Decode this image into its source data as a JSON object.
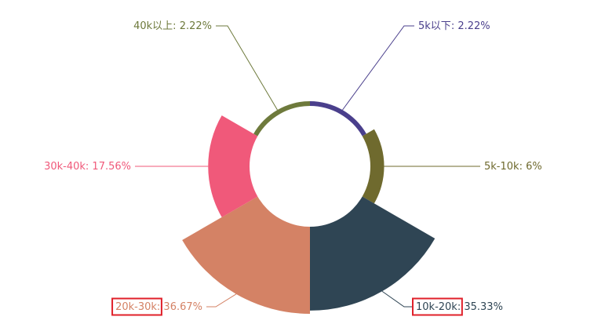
{
  "chart_data": {
    "type": "rose",
    "categories": [
      "5k以下",
      "5k-10k",
      "10k-20k",
      "20k-30k",
      "30k-40k",
      "40k以上"
    ],
    "values": [
      2.22,
      6,
      35.33,
      36.67,
      17.56,
      2.22
    ],
    "value_labels": [
      "2.22%",
      "6%",
      "35.33%",
      "36.67%",
      "17.56%",
      "2.22%"
    ],
    "label_separator": ": ",
    "colors": [
      "#4a3f8c",
      "#6f6a2e",
      "#2f4554",
      "#d48265",
      "#f0597a",
      "#6e7a3c"
    ],
    "highlighted": [
      2,
      3
    ],
    "highlight_color": "#e0202a"
  }
}
